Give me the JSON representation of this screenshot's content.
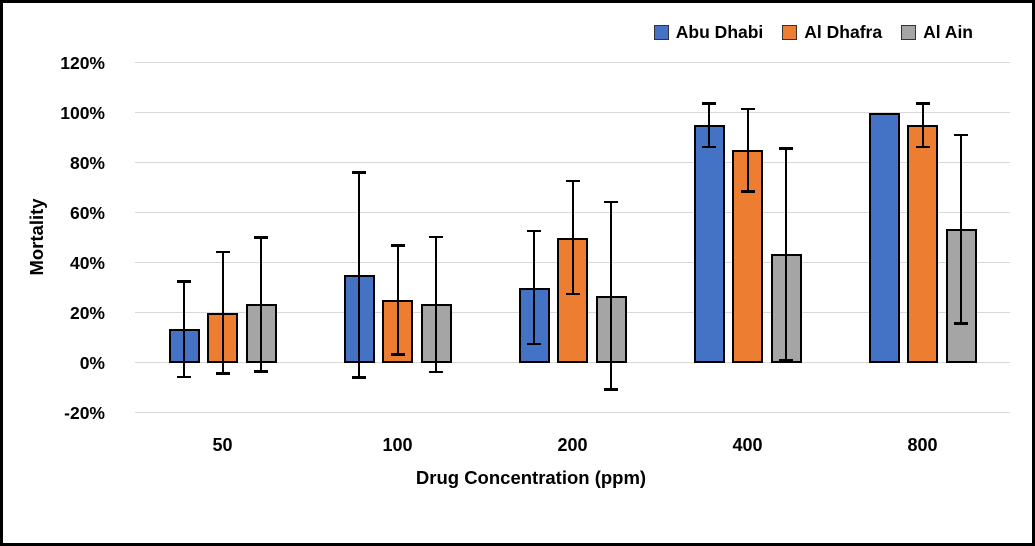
{
  "chart_data": {
    "type": "bar",
    "title": "",
    "xlabel": "Drug Concentration (ppm)",
    "ylabel": "Mortality",
    "categories": [
      "50",
      "100",
      "200",
      "400",
      "800"
    ],
    "series": [
      {
        "name": "Abu Dhabi",
        "color": "#4472C4",
        "values": [
          13.3,
          35,
          30,
          95,
          100
        ],
        "errors": [
          19.1,
          41.0,
          22.6,
          8.7,
          0
        ]
      },
      {
        "name": "Al Dhafra",
        "color": "#ED7D31",
        "values": [
          20,
          25,
          50,
          85,
          95
        ],
        "errors": [
          24.3,
          21.8,
          22.6,
          16.5,
          8.7
        ]
      },
      {
        "name": "Al Ain",
        "color": "#A5A5A5",
        "values": [
          23.3,
          23.3,
          26.7,
          43.3,
          53.3
        ],
        "errors": [
          26.8,
          27.0,
          37.5,
          42.3,
          37.7
        ]
      }
    ],
    "y_ticks": [
      120,
      100,
      80,
      60,
      40,
      20,
      0,
      -20
    ],
    "y_tick_suffix": "%",
    "ylim": [
      -20,
      120
    ],
    "grid": true,
    "legend_position": "top-right",
    "error_bars": true,
    "colors": {
      "gridline": "#D9D9D9",
      "bar_outline": "#000000",
      "text": "#000000",
      "frame_border": "#000000"
    }
  }
}
